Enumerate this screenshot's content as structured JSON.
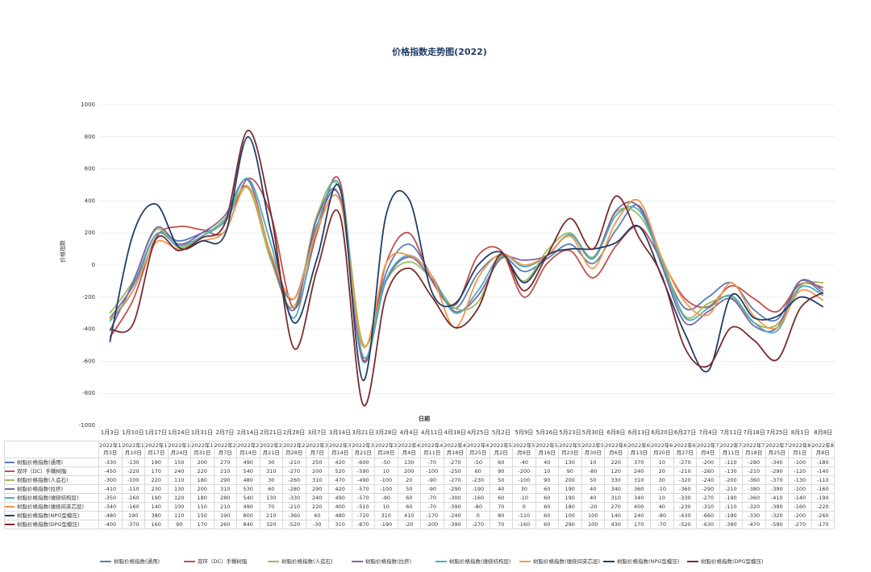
{
  "chart_data": {
    "type": "line",
    "title": "价格指数走势图(2022)",
    "y_label": "价格指数",
    "x_label": "日期",
    "categories": [
      "1月3日",
      "1月10日",
      "1月17日",
      "1月24日",
      "1月31日",
      "2月7日",
      "2月14日",
      "2月21日",
      "2月28日",
      "3月7日",
      "3月14日",
      "3月21日",
      "3月28日",
      "4月4日",
      "4月11日",
      "4月18日",
      "4月25日",
      "5月2日",
      "5月9日",
      "5月16日",
      "5月23日",
      "5月30日",
      "6月6日",
      "6月13日",
      "6月20日",
      "6月27日",
      "7月4日",
      "7月11日",
      "7月18日",
      "7月25日",
      "8月1日",
      "8月8日"
    ],
    "table_columns": [
      "2022年1月3日",
      "2022年1月10日",
      "2022年1月17日",
      "2022年1月24日",
      "2022年1月31日",
      "2022年2月7日",
      "2022年2月14日",
      "2022年2月21日",
      "2022年2月28日",
      "2022年3月7日",
      "2022年3月14日",
      "2022年3月21日",
      "2022年3月28日",
      "2022年4月4日",
      "2022年4月11日",
      "2022年4月18日",
      "2022年4月25日",
      "2022年5月2日",
      "2022年5月9日",
      "2022年5月16日",
      "2022年5月23日",
      "2022年5月30日",
      "2022年6月6日",
      "2022年6月13日",
      "2022年6月20日",
      "2022年6月27日",
      "2022年7月4日",
      "2022年7月11日",
      "2022年7月18日",
      "2022年7月25日",
      "2022年8月1日",
      "2022年8月8日"
    ],
    "ylim": [
      -1000,
      1000
    ],
    "yticks": [
      -1000,
      -800,
      -600,
      -400,
      -200,
      0,
      200,
      400,
      600,
      800,
      1000
    ],
    "grid": true,
    "series": [
      {
        "name": "树脂价格指数(通用)",
        "color": "#5a7db5",
        "values": [
          -330,
          -130,
          190,
          150,
          200,
          270,
          490,
          30,
          -210,
          250,
          420,
          -600,
          -50,
          130,
          -70,
          -270,
          -50,
          60,
          -40,
          40,
          130,
          10,
          220,
          370,
          10,
          -270,
          -200,
          -110,
          -280,
          -340,
          -100,
          -180
        ]
      },
      {
        "name": "双环（DC）手糊树脂",
        "color": "#c0504d",
        "values": [
          -450,
          -220,
          170,
          240,
          220,
          210,
          540,
          310,
          -270,
          200,
          520,
          -590,
          10,
          200,
          -100,
          -250,
          60,
          90,
          -200,
          10,
          90,
          -80,
          120,
          240,
          20,
          -210,
          -260,
          -130,
          -210,
          -290,
          -120,
          -140
        ]
      },
      {
        "name": "树脂价格指数(人造石)",
        "color": "#9bbb59",
        "values": [
          -300,
          -100,
          220,
          110,
          180,
          290,
          480,
          30,
          -260,
          310,
          470,
          -490,
          -100,
          20,
          -90,
          -270,
          -230,
          50,
          -100,
          90,
          200,
          50,
          330,
          310,
          30,
          -320,
          -240,
          -200,
          -360,
          -370,
          -130,
          -110
        ]
      },
      {
        "name": "树脂价格指数(拉挤)",
        "color": "#8064a2",
        "values": [
          -410,
          -110,
          230,
          130,
          200,
          310,
          530,
          60,
          -280,
          290,
          420,
          -570,
          -100,
          50,
          -90,
          -290,
          -190,
          40,
          30,
          60,
          190,
          40,
          340,
          360,
          -10,
          -360,
          -290,
          -210,
          -380,
          -390,
          -100,
          -160
        ]
      },
      {
        "name": "树脂价格指数(缠绕结构层)",
        "color": "#4bacc6",
        "values": [
          -350,
          -160,
          190,
          120,
          180,
          280,
          540,
          130,
          -330,
          240,
          490,
          -570,
          -90,
          60,
          -70,
          -300,
          -160,
          60,
          -10,
          60,
          190,
          40,
          310,
          340,
          10,
          -330,
          -270,
          -190,
          -360,
          -410,
          -140,
          -190
        ]
      },
      {
        "name": "树脂价格指数(缠绕间夹芯层)",
        "color": "#f79646",
        "values": [
          -340,
          -160,
          140,
          100,
          150,
          210,
          490,
          70,
          -210,
          220,
          400,
          -510,
          10,
          60,
          -70,
          -390,
          -80,
          70,
          0,
          60,
          180,
          -20,
          270,
          400,
          40,
          -230,
          -310,
          -110,
          -320,
          -390,
          -160,
          -220
        ]
      },
      {
        "name": "树脂价格指数(NPG型模压)",
        "color": "#1f3d66",
        "values": [
          -480,
          190,
          380,
          110,
          150,
          190,
          800,
          210,
          -360,
          40,
          480,
          -720,
          310,
          410,
          -170,
          -240,
          0,
          80,
          -110,
          60,
          100,
          100,
          140,
          240,
          -80,
          -430,
          -660,
          -190,
          -330,
          -320,
          -200,
          -260
        ]
      },
      {
        "name": "树脂价格指数(DPG型模压)",
        "color": "#7b2a2a",
        "values": [
          -400,
          -370,
          160,
          90,
          170,
          260,
          840,
          320,
          -520,
          -30,
          310,
          -870,
          -190,
          -20,
          -200,
          -390,
          -270,
          70,
          -160,
          60,
          290,
          100,
          430,
          170,
          -70,
          -520,
          -630,
          -390,
          -470,
          -590,
          -270,
          -170
        ]
      }
    ]
  }
}
